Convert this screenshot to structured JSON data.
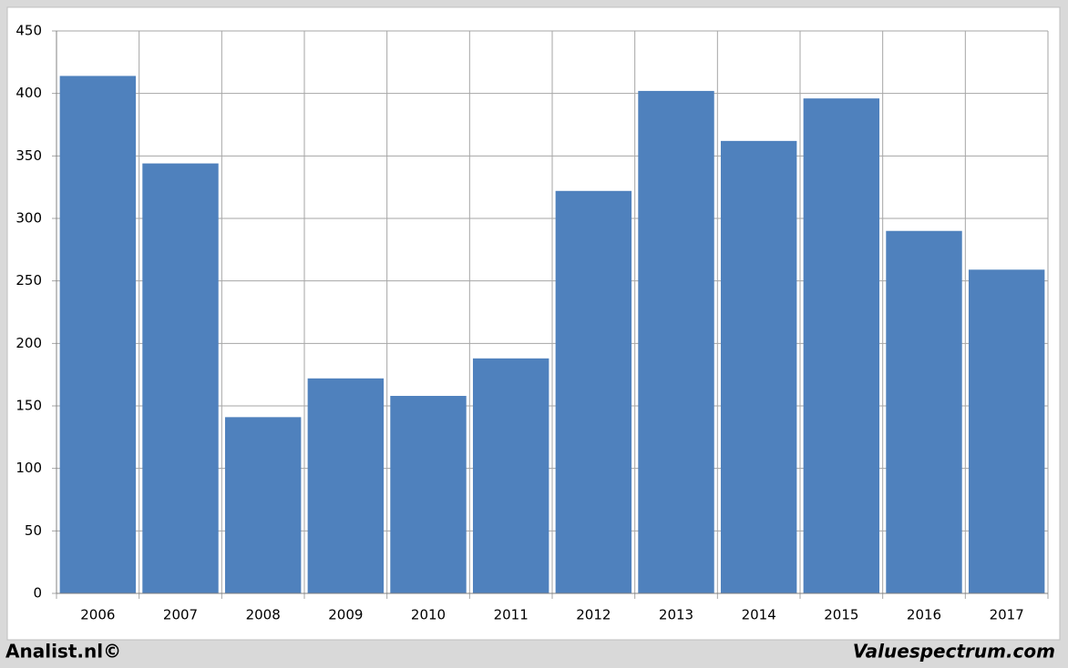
{
  "chart_data": {
    "type": "bar",
    "categories": [
      "2006",
      "2007",
      "2008",
      "2009",
      "2010",
      "2011",
      "2012",
      "2013",
      "2014",
      "2015",
      "2016",
      "2017"
    ],
    "values": [
      414,
      344,
      141,
      172,
      158,
      188,
      322,
      402,
      362,
      396,
      290,
      259
    ],
    "color": "#4f81bd",
    "ylim": [
      0,
      450
    ],
    "yticks": [
      0,
      50,
      100,
      150,
      200,
      250,
      300,
      350,
      400,
      450
    ],
    "grid": true
  },
  "footer": {
    "left": "Analist.nl©",
    "right": "Valuespectrum.com"
  }
}
